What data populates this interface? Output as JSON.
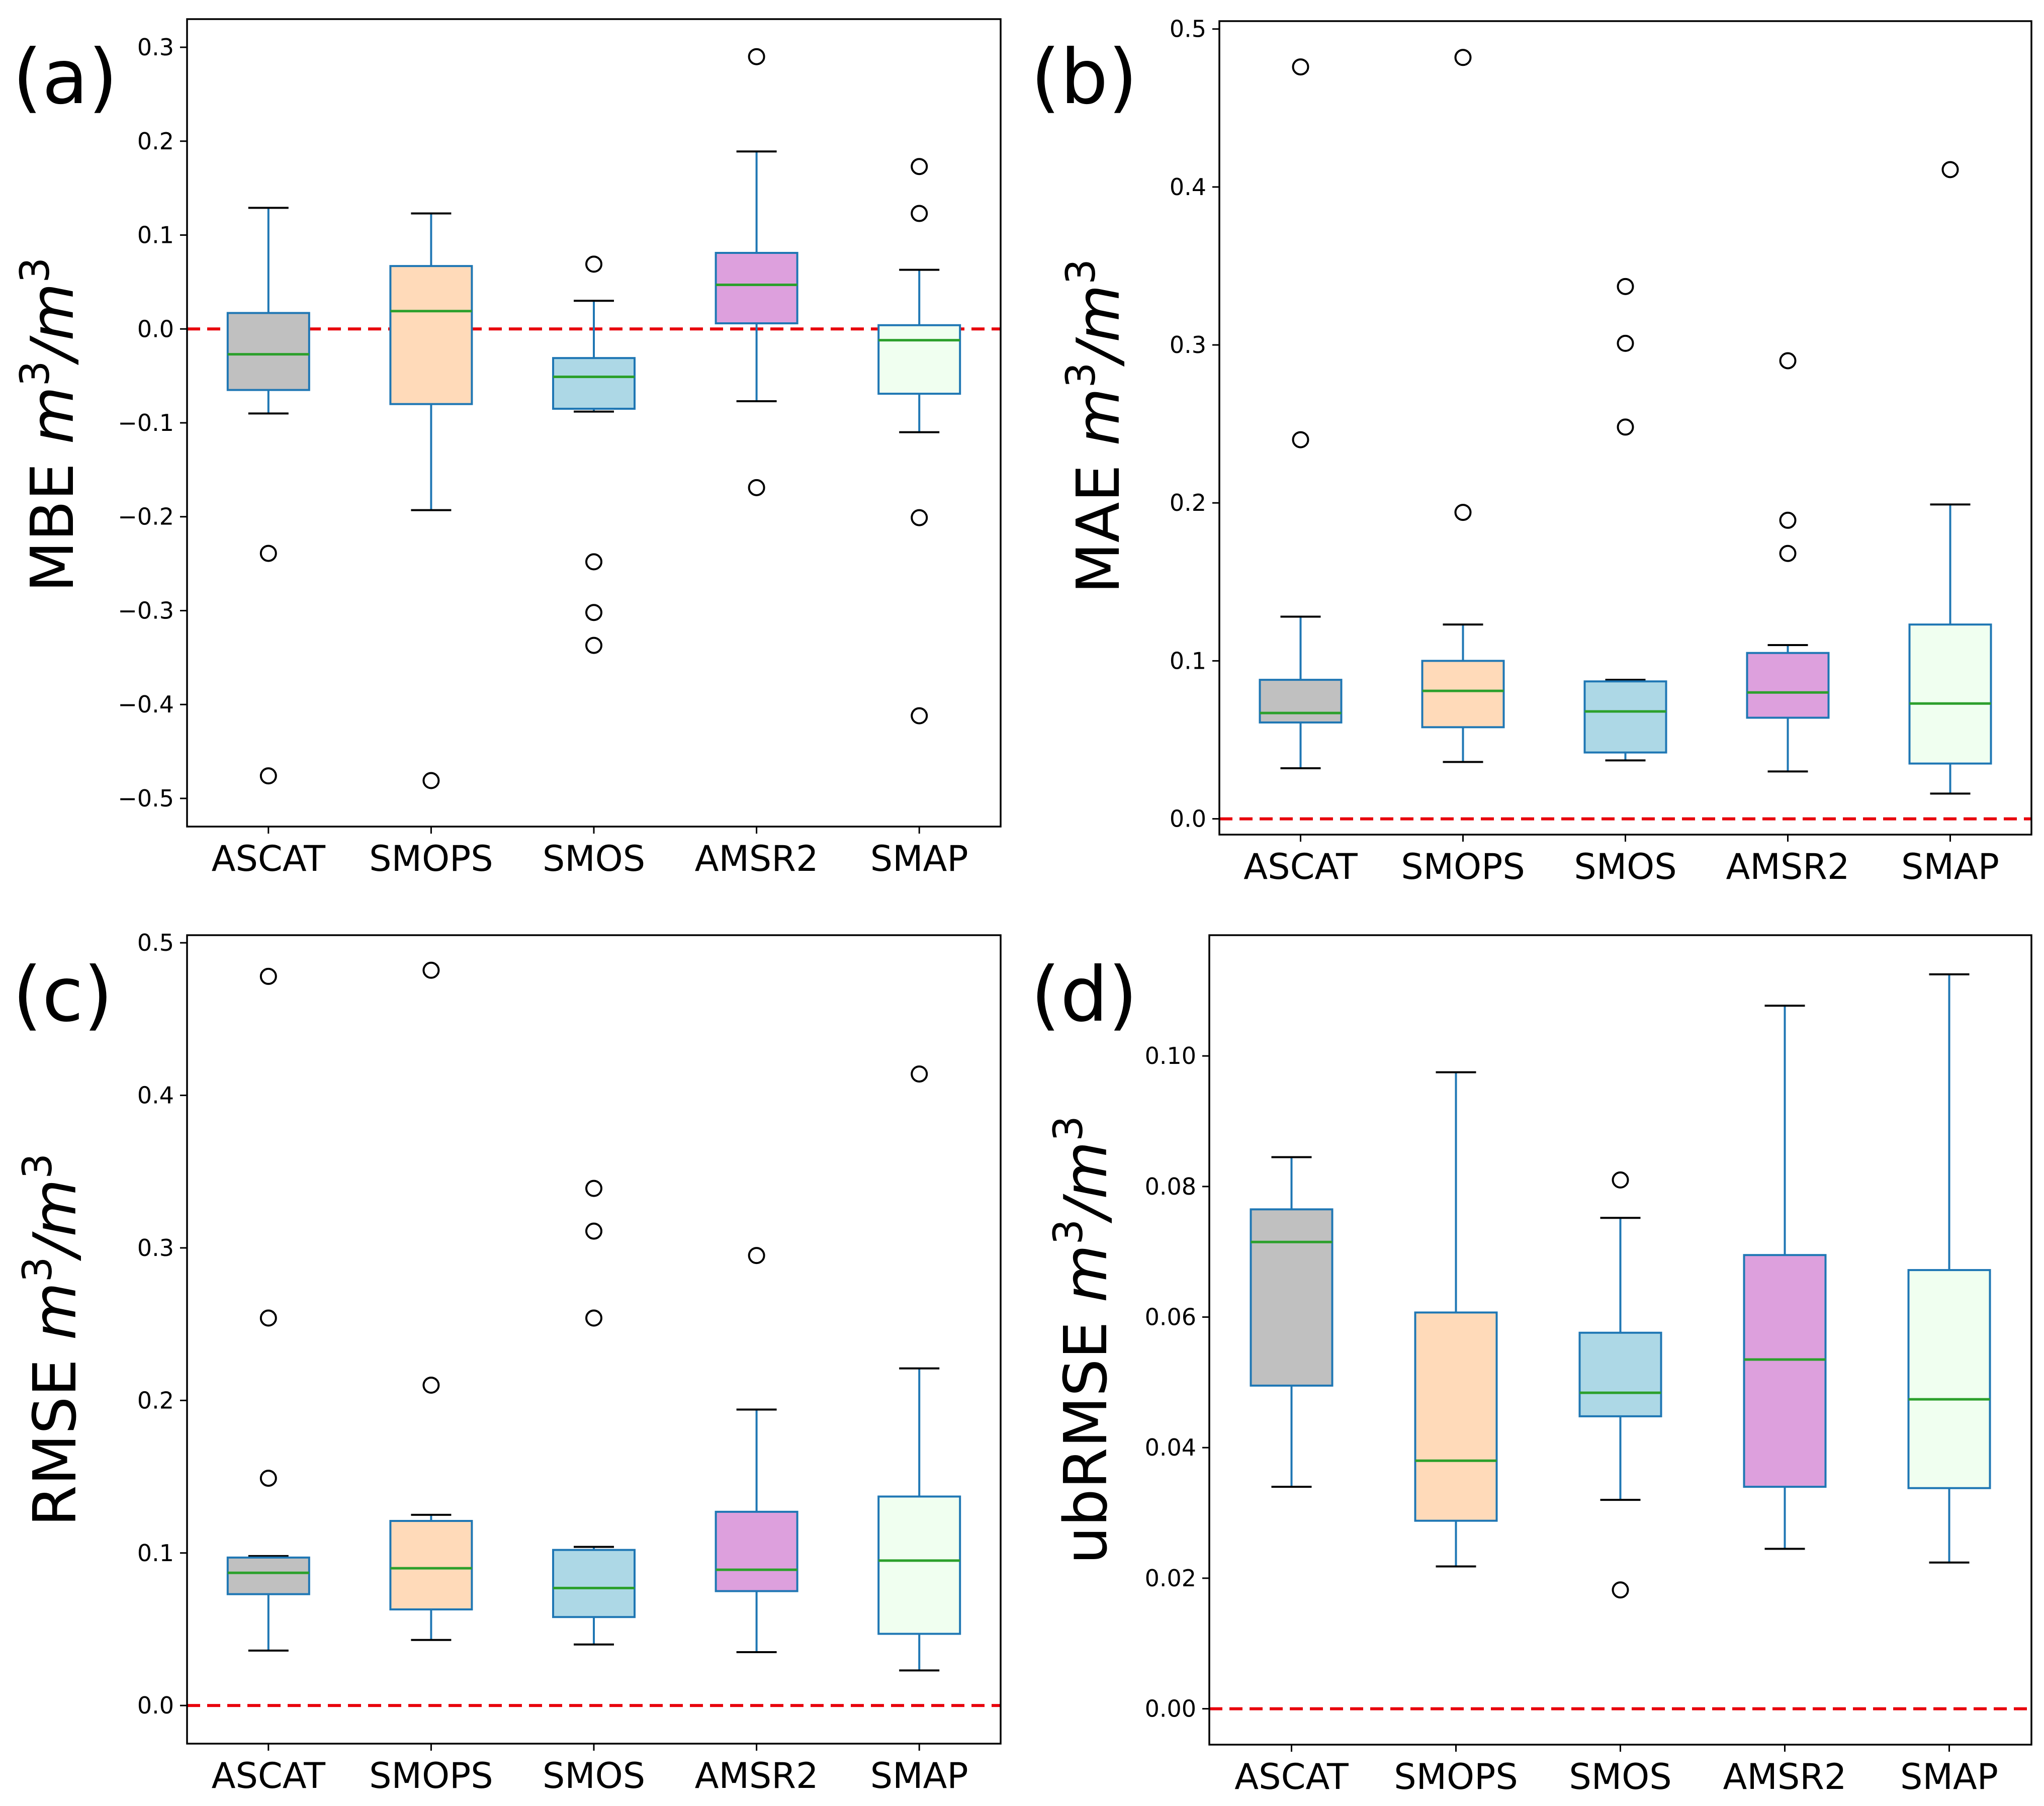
{
  "chart_data": [
    {
      "panel_label": "(a)",
      "type": "box",
      "ylabel_main": "MBE",
      "ylabel_unit_base": "m",
      "ylabel_unit_exp": "3",
      "ylabel_unit_sep": "/",
      "categories": [
        "ASCAT",
        "SMOPS",
        "SMOS",
        "AMSR2",
        "SMAP"
      ],
      "ylim": [
        -0.53,
        0.33
      ],
      "yticks": [
        -0.5,
        -0.4,
        -0.3,
        -0.2,
        -0.1,
        0.0,
        0.1,
        0.2,
        0.3
      ],
      "ytick_labels": [
        "−0.5",
        "−0.4",
        "−0.3",
        "−0.2",
        "−0.1",
        "0.0",
        "0.1",
        "0.2",
        "0.3"
      ],
      "reference_line": 0.0,
      "boxes": [
        {
          "name": "ASCAT",
          "color": "#c0c0c0",
          "whislo": -0.09,
          "q1": -0.065,
          "med": -0.027,
          "q3": 0.017,
          "whishi": 0.129,
          "fliers": [
            -0.239,
            -0.476
          ]
        },
        {
          "name": "SMOPS",
          "color": "#ffdab9",
          "whislo": -0.193,
          "q1": -0.08,
          "med": 0.019,
          "q3": 0.067,
          "whishi": 0.123,
          "fliers": [
            -0.481
          ]
        },
        {
          "name": "SMOS",
          "color": "#add8e6",
          "whislo": -0.088,
          "q1": -0.085,
          "med": -0.051,
          "q3": -0.031,
          "whishi": 0.03,
          "fliers": [
            0.069,
            -0.248,
            -0.302,
            -0.337
          ]
        },
        {
          "name": "AMSR2",
          "color": "#dda0dd",
          "whislo": -0.077,
          "q1": 0.006,
          "med": 0.047,
          "q3": 0.081,
          "whishi": 0.189,
          "fliers": [
            0.29,
            -0.169
          ]
        },
        {
          "name": "SMAP",
          "color": "#f0fff0",
          "whislo": -0.11,
          "q1": -0.069,
          "med": -0.012,
          "q3": 0.004,
          "whishi": 0.063,
          "fliers": [
            0.173,
            0.123,
            -0.201,
            -0.412
          ]
        }
      ]
    },
    {
      "panel_label": "(b)",
      "type": "box",
      "ylabel_main": "MAE",
      "ylabel_unit_base": "m",
      "ylabel_unit_exp": "3",
      "ylabel_unit_sep": "/",
      "categories": [
        "ASCAT",
        "SMOPS",
        "SMOS",
        "AMSR2",
        "SMAP"
      ],
      "ylim": [
        -0.01,
        0.505
      ],
      "yticks": [
        0.0,
        0.1,
        0.2,
        0.3,
        0.4,
        0.5
      ],
      "ytick_labels": [
        "0.0",
        "0.1",
        "0.2",
        "0.3",
        "0.4",
        "0.5"
      ],
      "reference_line": 0.0,
      "boxes": [
        {
          "name": "ASCAT",
          "color": "#c0c0c0",
          "whislo": 0.032,
          "q1": 0.061,
          "med": 0.067,
          "q3": 0.088,
          "whishi": 0.128,
          "fliers": [
            0.24,
            0.476
          ]
        },
        {
          "name": "SMOPS",
          "color": "#ffdab9",
          "whislo": 0.036,
          "q1": 0.058,
          "med": 0.081,
          "q3": 0.1,
          "whishi": 0.123,
          "fliers": [
            0.194,
            0.482
          ]
        },
        {
          "name": "SMOS",
          "color": "#add8e6",
          "whislo": 0.037,
          "q1": 0.042,
          "med": 0.068,
          "q3": 0.087,
          "whishi": 0.088,
          "fliers": [
            0.248,
            0.301,
            0.337
          ]
        },
        {
          "name": "AMSR2",
          "color": "#dda0dd",
          "whislo": 0.03,
          "q1": 0.064,
          "med": 0.08,
          "q3": 0.105,
          "whishi": 0.11,
          "fliers": [
            0.168,
            0.189,
            0.29
          ]
        },
        {
          "name": "SMAP",
          "color": "#f0fff0",
          "whislo": 0.016,
          "q1": 0.035,
          "med": 0.073,
          "q3": 0.123,
          "whishi": 0.199,
          "fliers": [
            0.411
          ]
        }
      ]
    },
    {
      "panel_label": "(c)",
      "type": "box",
      "ylabel_main": "RMSE",
      "ylabel_unit_base": "m",
      "ylabel_unit_exp": "3",
      "ylabel_unit_sep": "/",
      "categories": [
        "ASCAT",
        "SMOPS",
        "SMOS",
        "AMSR2",
        "SMAP"
      ],
      "ylim": [
        -0.025,
        0.505
      ],
      "yticks": [
        0.0,
        0.1,
        0.2,
        0.3,
        0.4,
        0.5
      ],
      "ytick_labels": [
        "0.0",
        "0.1",
        "0.2",
        "0.3",
        "0.4",
        "0.5"
      ],
      "reference_line": 0.0,
      "boxes": [
        {
          "name": "ASCAT",
          "color": "#c0c0c0",
          "whislo": 0.036,
          "q1": 0.073,
          "med": 0.087,
          "q3": 0.097,
          "whishi": 0.098,
          "fliers": [
            0.149,
            0.254,
            0.478
          ]
        },
        {
          "name": "SMOPS",
          "color": "#ffdab9",
          "whislo": 0.043,
          "q1": 0.063,
          "med": 0.09,
          "q3": 0.121,
          "whishi": 0.125,
          "fliers": [
            0.21,
            0.482
          ]
        },
        {
          "name": "SMOS",
          "color": "#add8e6",
          "whislo": 0.04,
          "q1": 0.058,
          "med": 0.077,
          "q3": 0.102,
          "whishi": 0.104,
          "fliers": [
            0.254,
            0.311,
            0.339
          ]
        },
        {
          "name": "AMSR2",
          "color": "#dda0dd",
          "whislo": 0.035,
          "q1": 0.075,
          "med": 0.089,
          "q3": 0.127,
          "whishi": 0.194,
          "fliers": [
            0.295
          ]
        },
        {
          "name": "SMAP",
          "color": "#f0fff0",
          "whislo": 0.023,
          "q1": 0.047,
          "med": 0.095,
          "q3": 0.137,
          "whishi": 0.221,
          "fliers": [
            0.414
          ]
        }
      ]
    },
    {
      "panel_label": "(d)",
      "type": "box",
      "ylabel_main": "ubRMSE",
      "ylabel_unit_base": "m",
      "ylabel_unit_exp": "3",
      "ylabel_unit_sep": "/",
      "categories": [
        "ASCAT",
        "SMOPS",
        "SMOS",
        "AMSR2",
        "SMAP"
      ],
      "ylim": [
        -0.0055,
        0.1185
      ],
      "yticks": [
        0.0,
        0.02,
        0.04,
        0.06,
        0.08,
        0.1
      ],
      "ytick_labels": [
        "0.00",
        "0.02",
        "0.04",
        "0.06",
        "0.08",
        "0.10"
      ],
      "reference_line": 0.0,
      "boxes": [
        {
          "name": "ASCAT",
          "color": "#c0c0c0",
          "whislo": 0.034,
          "q1": 0.0495,
          "med": 0.0715,
          "q3": 0.0765,
          "whishi": 0.0845,
          "fliers": []
        },
        {
          "name": "SMOPS",
          "color": "#ffdab9",
          "whislo": 0.0218,
          "q1": 0.0288,
          "med": 0.038,
          "q3": 0.0607,
          "whishi": 0.0975,
          "fliers": []
        },
        {
          "name": "SMOS",
          "color": "#add8e6",
          "whislo": 0.032,
          "q1": 0.0448,
          "med": 0.0484,
          "q3": 0.0576,
          "whishi": 0.0752,
          "fliers": [
            0.081,
            0.0182
          ]
        },
        {
          "name": "AMSR2",
          "color": "#dda0dd",
          "whislo": 0.0245,
          "q1": 0.034,
          "med": 0.0535,
          "q3": 0.0695,
          "whishi": 0.1077,
          "fliers": []
        },
        {
          "name": "SMAP",
          "color": "#f0fff0",
          "whislo": 0.0224,
          "q1": 0.0338,
          "med": 0.0474,
          "q3": 0.0672,
          "whishi": 0.1125,
          "fliers": []
        }
      ]
    }
  ],
  "colors": {
    "edge": "#1f77b4",
    "median": "#2ca02c",
    "reference_line": "#e8000b",
    "axis": "#000000",
    "flier": "#000000"
  }
}
